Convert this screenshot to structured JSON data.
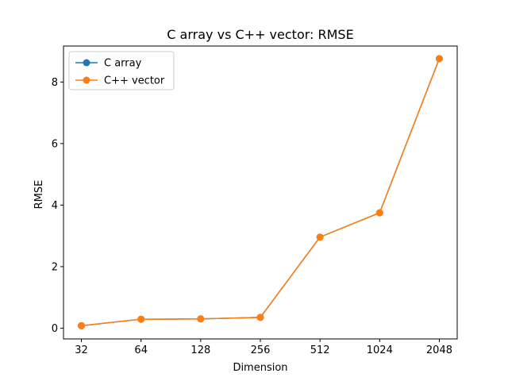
{
  "chart_data": {
    "type": "line",
    "title": "C array vs C++ vector: RMSE",
    "xlabel": "Dimension",
    "ylabel": "RMSE",
    "categories": [
      "32",
      "64",
      "128",
      "256",
      "512",
      "1024",
      "2048"
    ],
    "ylim": [
      -0.35,
      9.17
    ],
    "yticks": [
      0,
      2,
      4,
      6,
      8
    ],
    "grid": false,
    "legend_position": "upper-left",
    "series": [
      {
        "name": "C array",
        "color": "#1f77b4",
        "marker": "circle",
        "values": [
          0.08,
          0.29,
          0.3,
          0.35,
          2.96,
          3.75,
          8.76
        ]
      },
      {
        "name": "C++ vector",
        "color": "#ff7f0e",
        "marker": "circle",
        "values": [
          0.08,
          0.29,
          0.3,
          0.35,
          2.96,
          3.75,
          8.76
        ]
      }
    ]
  }
}
